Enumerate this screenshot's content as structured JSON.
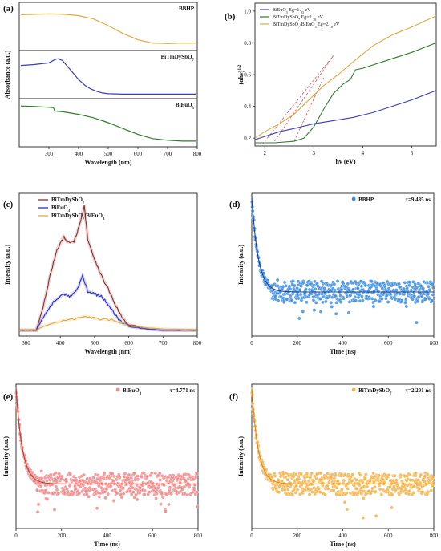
{
  "panels": {
    "a": {
      "label": "(a)"
    },
    "b": {
      "label": "(b)"
    },
    "c": {
      "label": "(c)"
    },
    "d": {
      "label": "(d)"
    },
    "e": {
      "label": "(e)"
    },
    "f": {
      "label": "(f)"
    }
  },
  "chart_data": [
    {
      "panel": "a",
      "type": "line",
      "xlabel": "Wavelength (nm)",
      "ylabel": "Absorbance (a.u.)",
      "xlim": [
        200,
        800
      ],
      "xticks": [
        "300",
        "400",
        "500",
        "600",
        "700",
        "800"
      ],
      "subplots": [
        {
          "name": "BBHP",
          "color": "#e0a93c",
          "x": [
            205,
            250,
            300,
            350,
            400,
            450,
            500,
            550,
            600,
            650,
            700,
            750,
            795
          ],
          "y": [
            0.78,
            0.79,
            0.8,
            0.79,
            0.76,
            0.68,
            0.52,
            0.33,
            0.18,
            0.1,
            0.09,
            0.1,
            0.1
          ]
        },
        {
          "name": "BiTmDySbO7",
          "color": "#3b3fb6",
          "x": [
            205,
            250,
            300,
            320,
            330,
            345,
            360,
            380,
            400,
            420,
            440,
            460,
            480,
            500,
            550,
            600,
            700,
            795
          ],
          "y": [
            0.72,
            0.74,
            0.78,
            0.86,
            0.88,
            0.84,
            0.72,
            0.55,
            0.38,
            0.25,
            0.16,
            0.1,
            0.06,
            0.04,
            0.03,
            0.03,
            0.03,
            0.03
          ]
        },
        {
          "name": "BiEuO3",
          "color": "#2e7d2e",
          "x": [
            205,
            250,
            300,
            315,
            320,
            350,
            400,
            450,
            500,
            550,
            600,
            650,
            700,
            750,
            795
          ],
          "y": [
            0.9,
            0.89,
            0.87,
            0.86,
            0.78,
            0.76,
            0.7,
            0.62,
            0.5,
            0.36,
            0.22,
            0.12,
            0.08,
            0.06,
            0.06
          ]
        }
      ]
    },
    {
      "panel": "b",
      "type": "line",
      "xlabel": "hv (eV)",
      "ylabel": "(αhν)^1/2",
      "xlim": [
        1.8,
        5.5
      ],
      "ylim": [
        0.15,
        1.05
      ],
      "xticks": [
        "2",
        "3",
        "4",
        "5"
      ],
      "yticks": [
        "0.2",
        "0.4",
        "0.6",
        "0.8",
        "1.0"
      ],
      "legend": "top-left",
      "series": [
        {
          "name": "BiEuO3   Eg=1.93 eV",
          "color": "#3b3fb6",
          "x": [
            1.8,
            2.0,
            2.3,
            2.6,
            3.0,
            3.4,
            3.8,
            4.2,
            4.6,
            5.0,
            5.5
          ],
          "y": [
            0.19,
            0.21,
            0.24,
            0.26,
            0.29,
            0.31,
            0.33,
            0.36,
            0.4,
            0.44,
            0.5
          ]
        },
        {
          "name": "BiTmDySbO7  Eg=2.78 eV",
          "color": "#2e7d2e",
          "x": [
            1.8,
            2.2,
            2.6,
            2.8,
            3.0,
            3.2,
            3.4,
            3.6,
            3.75,
            3.85,
            4.0,
            4.5,
            5.0,
            5.5
          ],
          "y": [
            0.17,
            0.17,
            0.18,
            0.2,
            0.27,
            0.38,
            0.48,
            0.54,
            0.57,
            0.63,
            0.64,
            0.69,
            0.74,
            0.8
          ]
        },
        {
          "name": "BiTmDySbO7/BiEuO3  Eg=2.18 eV",
          "color": "#e0a93c",
          "x": [
            1.8,
            2.0,
            2.3,
            2.6,
            2.9,
            3.2,
            3.5,
            3.8,
            4.2,
            4.6,
            5.0,
            5.5
          ],
          "y": [
            0.2,
            0.24,
            0.29,
            0.35,
            0.44,
            0.53,
            0.6,
            0.68,
            0.78,
            0.85,
            0.9,
            0.97
          ]
        }
      ]
    },
    {
      "panel": "c",
      "type": "line",
      "xlabel": "Wavelength (nm)",
      "ylabel": "Intensity (a.u.)",
      "xlim": [
        280,
        800
      ],
      "xticks": [
        "300",
        "400",
        "500",
        "600",
        "700",
        "800"
      ],
      "legend": "top-left",
      "series": [
        {
          "name": "BiTmDySbO7",
          "color": "#8b2e2e",
          "x": [
            280,
            300,
            330,
            350,
            370,
            390,
            410,
            420,
            440,
            455,
            470,
            480,
            500,
            520,
            540,
            560,
            580,
            600,
            650,
            700,
            750,
            800
          ],
          "y": [
            0.02,
            0.02,
            0.02,
            0.2,
            0.44,
            0.64,
            0.74,
            0.7,
            0.7,
            0.82,
            0.98,
            0.72,
            0.56,
            0.44,
            0.34,
            0.22,
            0.12,
            0.06,
            0.03,
            0.02,
            0.02,
            0.02
          ]
        },
        {
          "name": "BiEuO3",
          "color": "#2a2ad6",
          "x": [
            280,
            300,
            330,
            350,
            380,
            410,
            430,
            450,
            465,
            480,
            500,
            520,
            540,
            560,
            580,
            600,
            650,
            700,
            800
          ],
          "y": [
            0.02,
            0.02,
            0.02,
            0.12,
            0.24,
            0.3,
            0.28,
            0.34,
            0.44,
            0.32,
            0.3,
            0.28,
            0.22,
            0.14,
            0.08,
            0.05,
            0.03,
            0.02,
            0.02
          ]
        },
        {
          "name": "BiTmDySbO7/BiEuO3",
          "color": "#e0a93c",
          "x": [
            280,
            300,
            330,
            350,
            400,
            450,
            470,
            500,
            550,
            600,
            650,
            700,
            800
          ],
          "y": [
            0.02,
            0.02,
            0.02,
            0.05,
            0.09,
            0.11,
            0.13,
            0.11,
            0.1,
            0.06,
            0.04,
            0.03,
            0.02
          ]
        }
      ]
    },
    {
      "panel": "d",
      "type": "scatter",
      "xlabel": "Time (ns)",
      "ylabel": "Intensity (a.u.)",
      "xlim": [
        0,
        800
      ],
      "xticks": [
        "0",
        "200",
        "400",
        "600",
        "800"
      ],
      "legend_label": "BBHP",
      "tau_label": "τ=9.485 ns",
      "tau": 9.485,
      "color": "#3f8fdf",
      "fit_color": "#1f3f9f"
    },
    {
      "panel": "e",
      "type": "scatter",
      "xlabel": "Time (ns)",
      "ylabel": "Intensity (a.u.)",
      "xlim": [
        0,
        800
      ],
      "xticks": [
        "0",
        "200",
        "400",
        "600",
        "800"
      ],
      "legend_label": "BiEuO3",
      "tau_label": "τ=4.771 ns",
      "tau": 4.771,
      "color": "#ef8a8a",
      "fit_color": "#c0392b"
    },
    {
      "panel": "f",
      "type": "scatter",
      "xlabel": "Time (ns)",
      "ylabel": "Intensity (a.u.)",
      "xlim": [
        0,
        800
      ],
      "xticks": [
        "0",
        "200",
        "400",
        "600",
        "800"
      ],
      "legend_label": "BiTmDySbO7",
      "tau_label": "τ=2.201 ns",
      "tau": 2.201,
      "color": "#f2b34b",
      "fit_color": "#e08a1a"
    }
  ]
}
